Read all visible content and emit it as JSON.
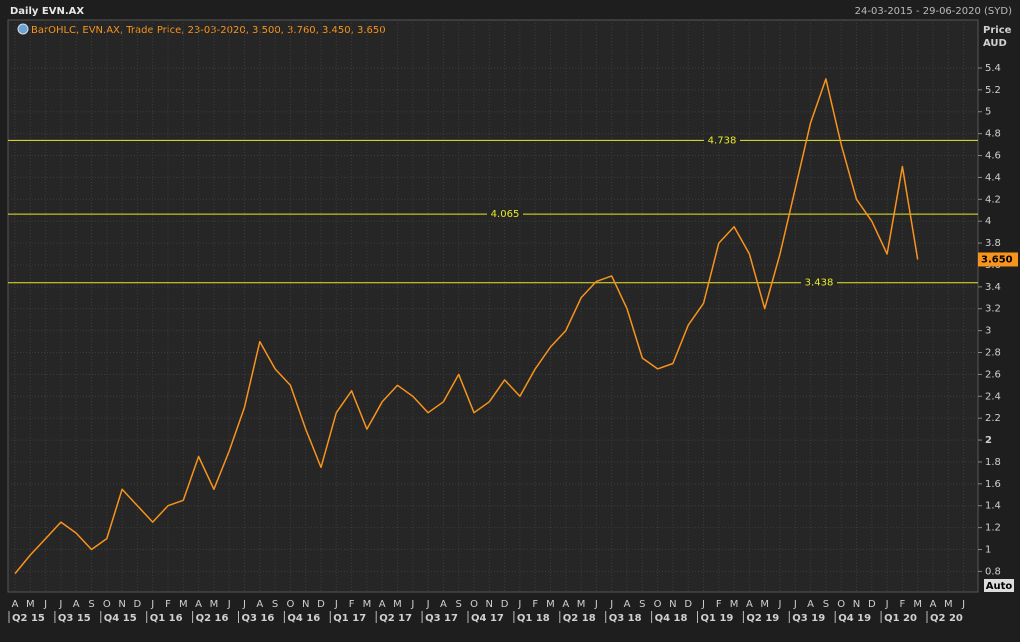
{
  "chart_data": {
    "type": "line",
    "title": "Daily EVN.AX",
    "date_range": "24-03-2015 - 29-06-2020 (SYD)",
    "legend_text": "BarOHLC, EVN.AX, Trade Price, 23-03-2020, 3.500, 3.760, 3.450, 3.650",
    "y_label": "Price",
    "y_unit": "AUD",
    "scale_button": "Auto",
    "categories": [
      "A",
      "M",
      "J",
      "J",
      "A",
      "S",
      "O",
      "N",
      "D",
      "J",
      "F",
      "M",
      "A",
      "M",
      "J",
      "J",
      "A",
      "S",
      "O",
      "N",
      "D",
      "J",
      "F",
      "M",
      "A",
      "M",
      "J",
      "J",
      "A",
      "S",
      "O",
      "N",
      "D",
      "J",
      "F",
      "M",
      "A",
      "M",
      "J",
      "J",
      "A",
      "S",
      "O",
      "N",
      "D",
      "J",
      "F",
      "M",
      "A",
      "M",
      "J",
      "J",
      "A",
      "S",
      "O",
      "N",
      "D",
      "J",
      "F",
      "M",
      "A",
      "M",
      "J"
    ],
    "quarters": [
      "Q2 15",
      "Q3 15",
      "Q4 15",
      "Q1 16",
      "Q2 16",
      "Q3 16",
      "Q4 16",
      "Q1 17",
      "Q2 17",
      "Q3 17",
      "Q4 17",
      "Q1 18",
      "Q2 18",
      "Q3 18",
      "Q4 18",
      "Q1 19",
      "Q2 19",
      "Q3 19",
      "Q4 19",
      "Q1 20",
      "Q2 20"
    ],
    "series": [
      {
        "name": "EVN.AX",
        "color": "#f7941d",
        "values": [
          0.78,
          0.95,
          1.1,
          1.25,
          1.15,
          1.0,
          1.1,
          1.55,
          1.4,
          1.25,
          1.4,
          1.45,
          1.85,
          1.55,
          1.9,
          2.3,
          2.9,
          2.65,
          2.5,
          2.1,
          1.75,
          2.25,
          2.45,
          2.1,
          2.35,
          2.5,
          2.4,
          2.25,
          2.35,
          2.6,
          2.25,
          2.35,
          2.55,
          2.4,
          2.65,
          2.85,
          3.0,
          3.3,
          3.45,
          3.5,
          3.2,
          2.75,
          2.65,
          2.7,
          3.05,
          3.25,
          3.8,
          3.95,
          3.7,
          3.2,
          3.7,
          4.3,
          4.9,
          5.3,
          4.7,
          4.2,
          4.0,
          3.7,
          4.5,
          3.65,
          null,
          null,
          null
        ]
      }
    ],
    "hlines": [
      4.738,
      4.065,
      3.438
    ],
    "hline_color": "#e8e82a",
    "last_price": {
      "value": 3.65,
      "label": "3.650"
    },
    "ylim": [
      0.63,
      5.82
    ],
    "yticks": [
      0.8,
      1,
      1.2,
      1.4,
      1.6,
      1.8,
      2,
      2.2,
      2.4,
      2.6,
      2.8,
      3,
      3.2,
      3.4,
      3.6,
      3.8,
      4,
      4.2,
      4.4,
      4.6,
      4.8,
      5,
      5.2,
      5.4
    ],
    "grid": true
  }
}
